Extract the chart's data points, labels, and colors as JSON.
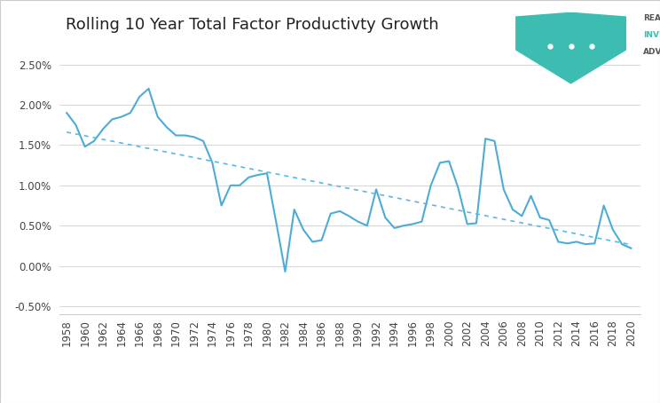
{
  "title": "Rolling 10 Year Total Factor Productivty Growth",
  "years": [
    1958,
    1959,
    1960,
    1961,
    1962,
    1963,
    1964,
    1965,
    1966,
    1967,
    1968,
    1969,
    1970,
    1971,
    1972,
    1973,
    1974,
    1975,
    1976,
    1977,
    1978,
    1979,
    1980,
    1981,
    1982,
    1983,
    1984,
    1985,
    1986,
    1987,
    1988,
    1989,
    1990,
    1991,
    1992,
    1993,
    1994,
    1995,
    1996,
    1997,
    1998,
    1999,
    2000,
    2001,
    2002,
    2003,
    2004,
    2005,
    2006,
    2007,
    2008,
    2009,
    2010,
    2011,
    2012,
    2013,
    2014,
    2015,
    2016,
    2017,
    2018,
    2019,
    2020
  ],
  "values": [
    1.9,
    1.75,
    1.48,
    1.55,
    1.7,
    1.82,
    1.85,
    1.9,
    2.1,
    2.2,
    1.85,
    1.72,
    1.62,
    1.62,
    1.6,
    1.55,
    1.28,
    0.75,
    1.0,
    1.0,
    1.1,
    1.13,
    1.15,
    0.55,
    -0.07,
    0.7,
    0.45,
    0.3,
    0.32,
    0.65,
    0.68,
    0.62,
    0.55,
    0.5,
    0.95,
    0.6,
    0.47,
    0.5,
    0.52,
    0.55,
    1.0,
    1.28,
    1.3,
    0.97,
    0.52,
    0.53,
    1.58,
    1.55,
    0.95,
    0.7,
    0.62,
    0.87,
    0.6,
    0.57,
    0.3,
    0.28,
    0.3,
    0.27,
    0.28,
    0.75,
    0.45,
    0.27,
    0.22
  ],
  "line_color": "#4dacd6",
  "trend_color": "#5bb8e0",
  "background_color": "#ffffff",
  "grid_color": "#d0d0d0",
  "logo_shield_color": "#3dbdb1",
  "ytick_labels": [
    "-0.50%",
    "0.00%",
    "0.50%",
    "1.00%",
    "1.50%",
    "2.00%",
    "2.50%"
  ],
  "ytick_vals": [
    -0.005,
    0.0,
    0.005,
    0.01,
    0.015,
    0.02,
    0.025
  ],
  "ylim_low": -0.006,
  "ylim_high": 0.027,
  "xlim_low": 1957.2,
  "xlim_high": 2021.0,
  "title_fontsize": 13,
  "tick_fontsize": 8.5
}
